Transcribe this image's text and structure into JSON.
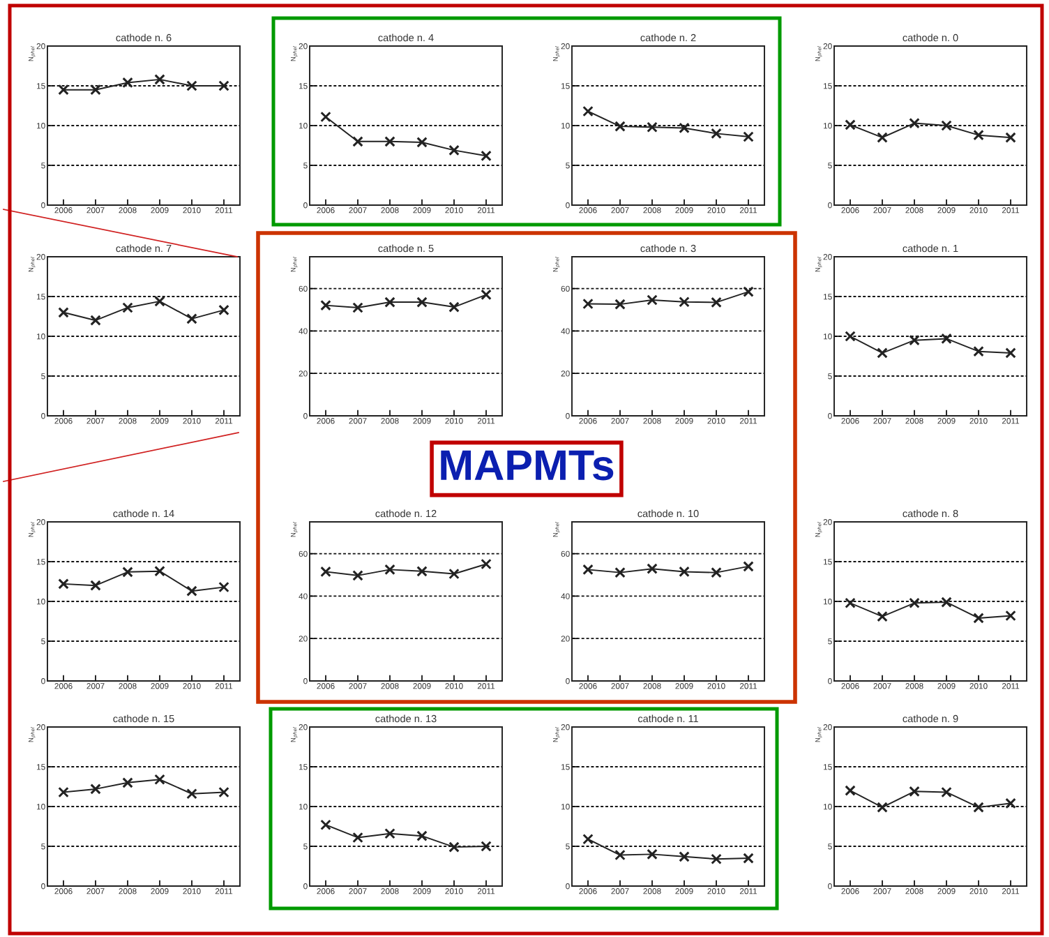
{
  "chart_data": [
    {
      "type": "line",
      "title": "cathode n. 6",
      "ylabel": "N$_{phel}$",
      "x": [
        2006,
        2007,
        2008,
        2009,
        2010,
        2011
      ],
      "xlim": [
        2005.5,
        2011.5
      ],
      "xticks": [
        2006,
        2007,
        2008,
        2009,
        2010,
        2011
      ],
      "ylim": [
        0,
        20
      ],
      "yticks": [
        0,
        5,
        10,
        15,
        20
      ],
      "grid": "y",
      "marker": "cross",
      "series": [
        {
          "color": "#222222",
          "values": [
            14.5,
            14.5,
            15.4,
            15.8,
            15.0,
            15.0
          ]
        }
      ]
    },
    {
      "type": "line",
      "title": "cathode n. 4",
      "ylabel": "N$_{phel}$",
      "x": [
        2006,
        2007,
        2008,
        2009,
        2010,
        2011
      ],
      "xlim": [
        2005.5,
        2011.5
      ],
      "xticks": [
        2006,
        2007,
        2008,
        2009,
        2010,
        2011
      ],
      "ylim": [
        0,
        20
      ],
      "yticks": [
        0,
        5,
        10,
        15,
        20
      ],
      "grid": "y",
      "marker": "cross",
      "series": [
        {
          "color": "#222222",
          "values": [
            11.1,
            8.0,
            8.0,
            7.9,
            6.9,
            6.2
          ]
        }
      ]
    },
    {
      "type": "line",
      "title": "cathode n. 2",
      "ylabel": "N$_{phel}$",
      "x": [
        2006,
        2007,
        2008,
        2009,
        2010,
        2011
      ],
      "xlim": [
        2005.5,
        2011.5
      ],
      "xticks": [
        2006,
        2007,
        2008,
        2009,
        2010,
        2011
      ],
      "ylim": [
        0,
        20
      ],
      "yticks": [
        0,
        5,
        10,
        15,
        20
      ],
      "grid": "y",
      "marker": "cross",
      "series": [
        {
          "color": "#222222",
          "values": [
            11.8,
            9.9,
            9.8,
            9.7,
            9.0,
            8.6
          ]
        }
      ]
    },
    {
      "type": "line",
      "title": "cathode n. 0",
      "ylabel": "N$_{phel}$",
      "x": [
        2006,
        2007,
        2008,
        2009,
        2010,
        2011
      ],
      "xlim": [
        2005.5,
        2011.5
      ],
      "xticks": [
        2006,
        2007,
        2008,
        2009,
        2010,
        2011
      ],
      "ylim": [
        0,
        20
      ],
      "yticks": [
        0,
        5,
        10,
        15,
        20
      ],
      "grid": "y",
      "marker": "cross",
      "series": [
        {
          "color": "#222222",
          "values": [
            10.1,
            8.5,
            10.3,
            10.0,
            8.8,
            8.5
          ]
        }
      ]
    },
    {
      "type": "line",
      "title": "cathode n. 7",
      "ylabel": "N$_{phel}$",
      "x": [
        2006,
        2007,
        2008,
        2009,
        2010,
        2011
      ],
      "xlim": [
        2005.5,
        2011.5
      ],
      "xticks": [
        2006,
        2007,
        2008,
        2009,
        2010,
        2011
      ],
      "ylim": [
        0,
        20
      ],
      "yticks": [
        0,
        5,
        10,
        15,
        20
      ],
      "grid": "y",
      "marker": "cross",
      "series": [
        {
          "color": "#222222",
          "values": [
            13.0,
            12.0,
            13.6,
            14.4,
            12.2,
            13.3
          ]
        }
      ]
    },
    {
      "type": "line",
      "title": "cathode n. 5",
      "ylabel": "N$_{phel}$",
      "x": [
        2006,
        2007,
        2008,
        2009,
        2010,
        2011
      ],
      "xlim": [
        2005.5,
        2011.5
      ],
      "xticks": [
        2006,
        2007,
        2008,
        2009,
        2010,
        2011
      ],
      "ylim": [
        0,
        75
      ],
      "yticks": [
        0,
        20,
        40,
        60
      ],
      "grid": "y",
      "marker": "cross",
      "annotations": [
        "MAPMTs"
      ],
      "series": [
        {
          "color": "#222222",
          "values": [
            52.1,
            51.0,
            53.6,
            53.6,
            51.3,
            57.1
          ]
        }
      ]
    },
    {
      "type": "line",
      "title": "cathode n. 3",
      "ylabel": "N$_{phel}$",
      "x": [
        2006,
        2007,
        2008,
        2009,
        2010,
        2011
      ],
      "xlim": [
        2005.5,
        2011.5
      ],
      "xticks": [
        2006,
        2007,
        2008,
        2009,
        2010,
        2011
      ],
      "ylim": [
        0,
        75
      ],
      "yticks": [
        0,
        20,
        40,
        60
      ],
      "grid": "y",
      "marker": "cross",
      "series": [
        {
          "color": "#222222",
          "values": [
            52.8,
            52.6,
            54.6,
            53.7,
            53.5,
            58.5
          ]
        }
      ]
    },
    {
      "type": "line",
      "title": "cathode n. 1",
      "ylabel": "N$_{phel}$",
      "x": [
        2006,
        2007,
        2008,
        2009,
        2010,
        2011
      ],
      "xlim": [
        2005.5,
        2011.5
      ],
      "xticks": [
        2006,
        2007,
        2008,
        2009,
        2010,
        2011
      ],
      "ylim": [
        0,
        20
      ],
      "yticks": [
        0,
        5,
        10,
        15,
        20
      ],
      "grid": "y",
      "marker": "cross",
      "series": [
        {
          "color": "#222222",
          "values": [
            10.0,
            7.9,
            9.5,
            9.7,
            8.1,
            7.9
          ]
        }
      ]
    },
    {
      "type": "line",
      "title": "cathode n. 14",
      "ylabel": "N$_{phel}$",
      "x": [
        2006,
        2007,
        2008,
        2009,
        2010,
        2011
      ],
      "xlim": [
        2005.5,
        2011.5
      ],
      "xticks": [
        2006,
        2007,
        2008,
        2009,
        2010,
        2011
      ],
      "ylim": [
        0,
        20
      ],
      "yticks": [
        0,
        5,
        10,
        15,
        20
      ],
      "grid": "y",
      "marker": "cross",
      "series": [
        {
          "color": "#222222",
          "values": [
            12.2,
            12.0,
            13.7,
            13.8,
            11.3,
            11.8
          ]
        }
      ]
    },
    {
      "type": "line",
      "title": "cathode n. 12",
      "ylabel": "N$_{phel}$",
      "x": [
        2006,
        2007,
        2008,
        2009,
        2010,
        2011
      ],
      "xlim": [
        2005.5,
        2011.5
      ],
      "xticks": [
        2006,
        2007,
        2008,
        2009,
        2010,
        2011
      ],
      "ylim": [
        0,
        75
      ],
      "yticks": [
        0,
        20,
        40,
        60
      ],
      "grid": "y",
      "marker": "cross",
      "series": [
        {
          "color": "#222222",
          "values": [
            51.5,
            49.7,
            52.5,
            51.7,
            50.5,
            55.1
          ]
        }
      ]
    },
    {
      "type": "line",
      "title": "cathode n. 10",
      "ylabel": "N$_{phel}$",
      "x": [
        2006,
        2007,
        2008,
        2009,
        2010,
        2011
      ],
      "xlim": [
        2005.5,
        2011.5
      ],
      "xticks": [
        2006,
        2007,
        2008,
        2009,
        2010,
        2011
      ],
      "ylim": [
        0,
        75
      ],
      "yticks": [
        0,
        20,
        40,
        60
      ],
      "grid": "y",
      "marker": "cross",
      "series": [
        {
          "color": "#222222",
          "values": [
            52.5,
            51.1,
            52.9,
            51.5,
            51.1,
            54.0
          ]
        }
      ]
    },
    {
      "type": "line",
      "title": "cathode n. 8",
      "ylabel": "N$_{phel}$",
      "x": [
        2006,
        2007,
        2008,
        2009,
        2010,
        2011
      ],
      "xlim": [
        2005.5,
        2011.5
      ],
      "xticks": [
        2006,
        2007,
        2008,
        2009,
        2010,
        2011
      ],
      "ylim": [
        0,
        20
      ],
      "yticks": [
        0,
        5,
        10,
        15,
        20
      ],
      "grid": "y",
      "marker": "cross",
      "series": [
        {
          "color": "#222222",
          "values": [
            9.8,
            8.1,
            9.8,
            9.9,
            7.9,
            8.2
          ]
        }
      ]
    },
    {
      "type": "line",
      "title": "cathode n. 15",
      "ylabel": "N$_{phel}$",
      "x": [
        2006,
        2007,
        2008,
        2009,
        2010,
        2011
      ],
      "xlim": [
        2005.5,
        2011.5
      ],
      "xticks": [
        2006,
        2007,
        2008,
        2009,
        2010,
        2011
      ],
      "ylim": [
        0,
        20
      ],
      "yticks": [
        0,
        5,
        10,
        15,
        20
      ],
      "grid": "y",
      "marker": "cross",
      "series": [
        {
          "color": "#222222",
          "values": [
            11.8,
            12.2,
            13.0,
            13.4,
            11.6,
            11.8
          ]
        }
      ]
    },
    {
      "type": "line",
      "title": "cathode n. 13",
      "ylabel": "N$_{phel}$",
      "x": [
        2006,
        2007,
        2008,
        2009,
        2010,
        2011
      ],
      "xlim": [
        2005.5,
        2011.5
      ],
      "xticks": [
        2006,
        2007,
        2008,
        2009,
        2010,
        2011
      ],
      "ylim": [
        0,
        20
      ],
      "yticks": [
        0,
        5,
        10,
        15,
        20
      ],
      "grid": "y",
      "marker": "cross",
      "series": [
        {
          "color": "#222222",
          "values": [
            7.7,
            6.1,
            6.6,
            6.3,
            4.9,
            5.0
          ]
        }
      ]
    },
    {
      "type": "line",
      "title": "cathode n. 11",
      "ylabel": "N$_{phel}$",
      "x": [
        2006,
        2007,
        2008,
        2009,
        2010,
        2011
      ],
      "xlim": [
        2005.5,
        2011.5
      ],
      "xticks": [
        2006,
        2007,
        2008,
        2009,
        2010,
        2011
      ],
      "ylim": [
        0,
        20
      ],
      "yticks": [
        0,
        5,
        10,
        15,
        20
      ],
      "grid": "y",
      "marker": "cross",
      "series": [
        {
          "color": "#222222",
          "values": [
            5.9,
            3.9,
            4.0,
            3.7,
            3.4,
            3.5
          ]
        }
      ]
    },
    {
      "type": "line",
      "title": "cathode n. 9",
      "ylabel": "N$_{phel}$",
      "x": [
        2006,
        2007,
        2008,
        2009,
        2010,
        2011
      ],
      "xlim": [
        2005.5,
        2011.5
      ],
      "xticks": [
        2006,
        2007,
        2008,
        2009,
        2010,
        2011
      ],
      "ylim": [
        0,
        20
      ],
      "yticks": [
        0,
        5,
        10,
        15,
        20
      ],
      "grid": "y",
      "marker": "cross",
      "series": [
        {
          "color": "#222222",
          "values": [
            12.0,
            9.9,
            11.9,
            11.8,
            9.9,
            10.4
          ]
        }
      ]
    }
  ]
}
